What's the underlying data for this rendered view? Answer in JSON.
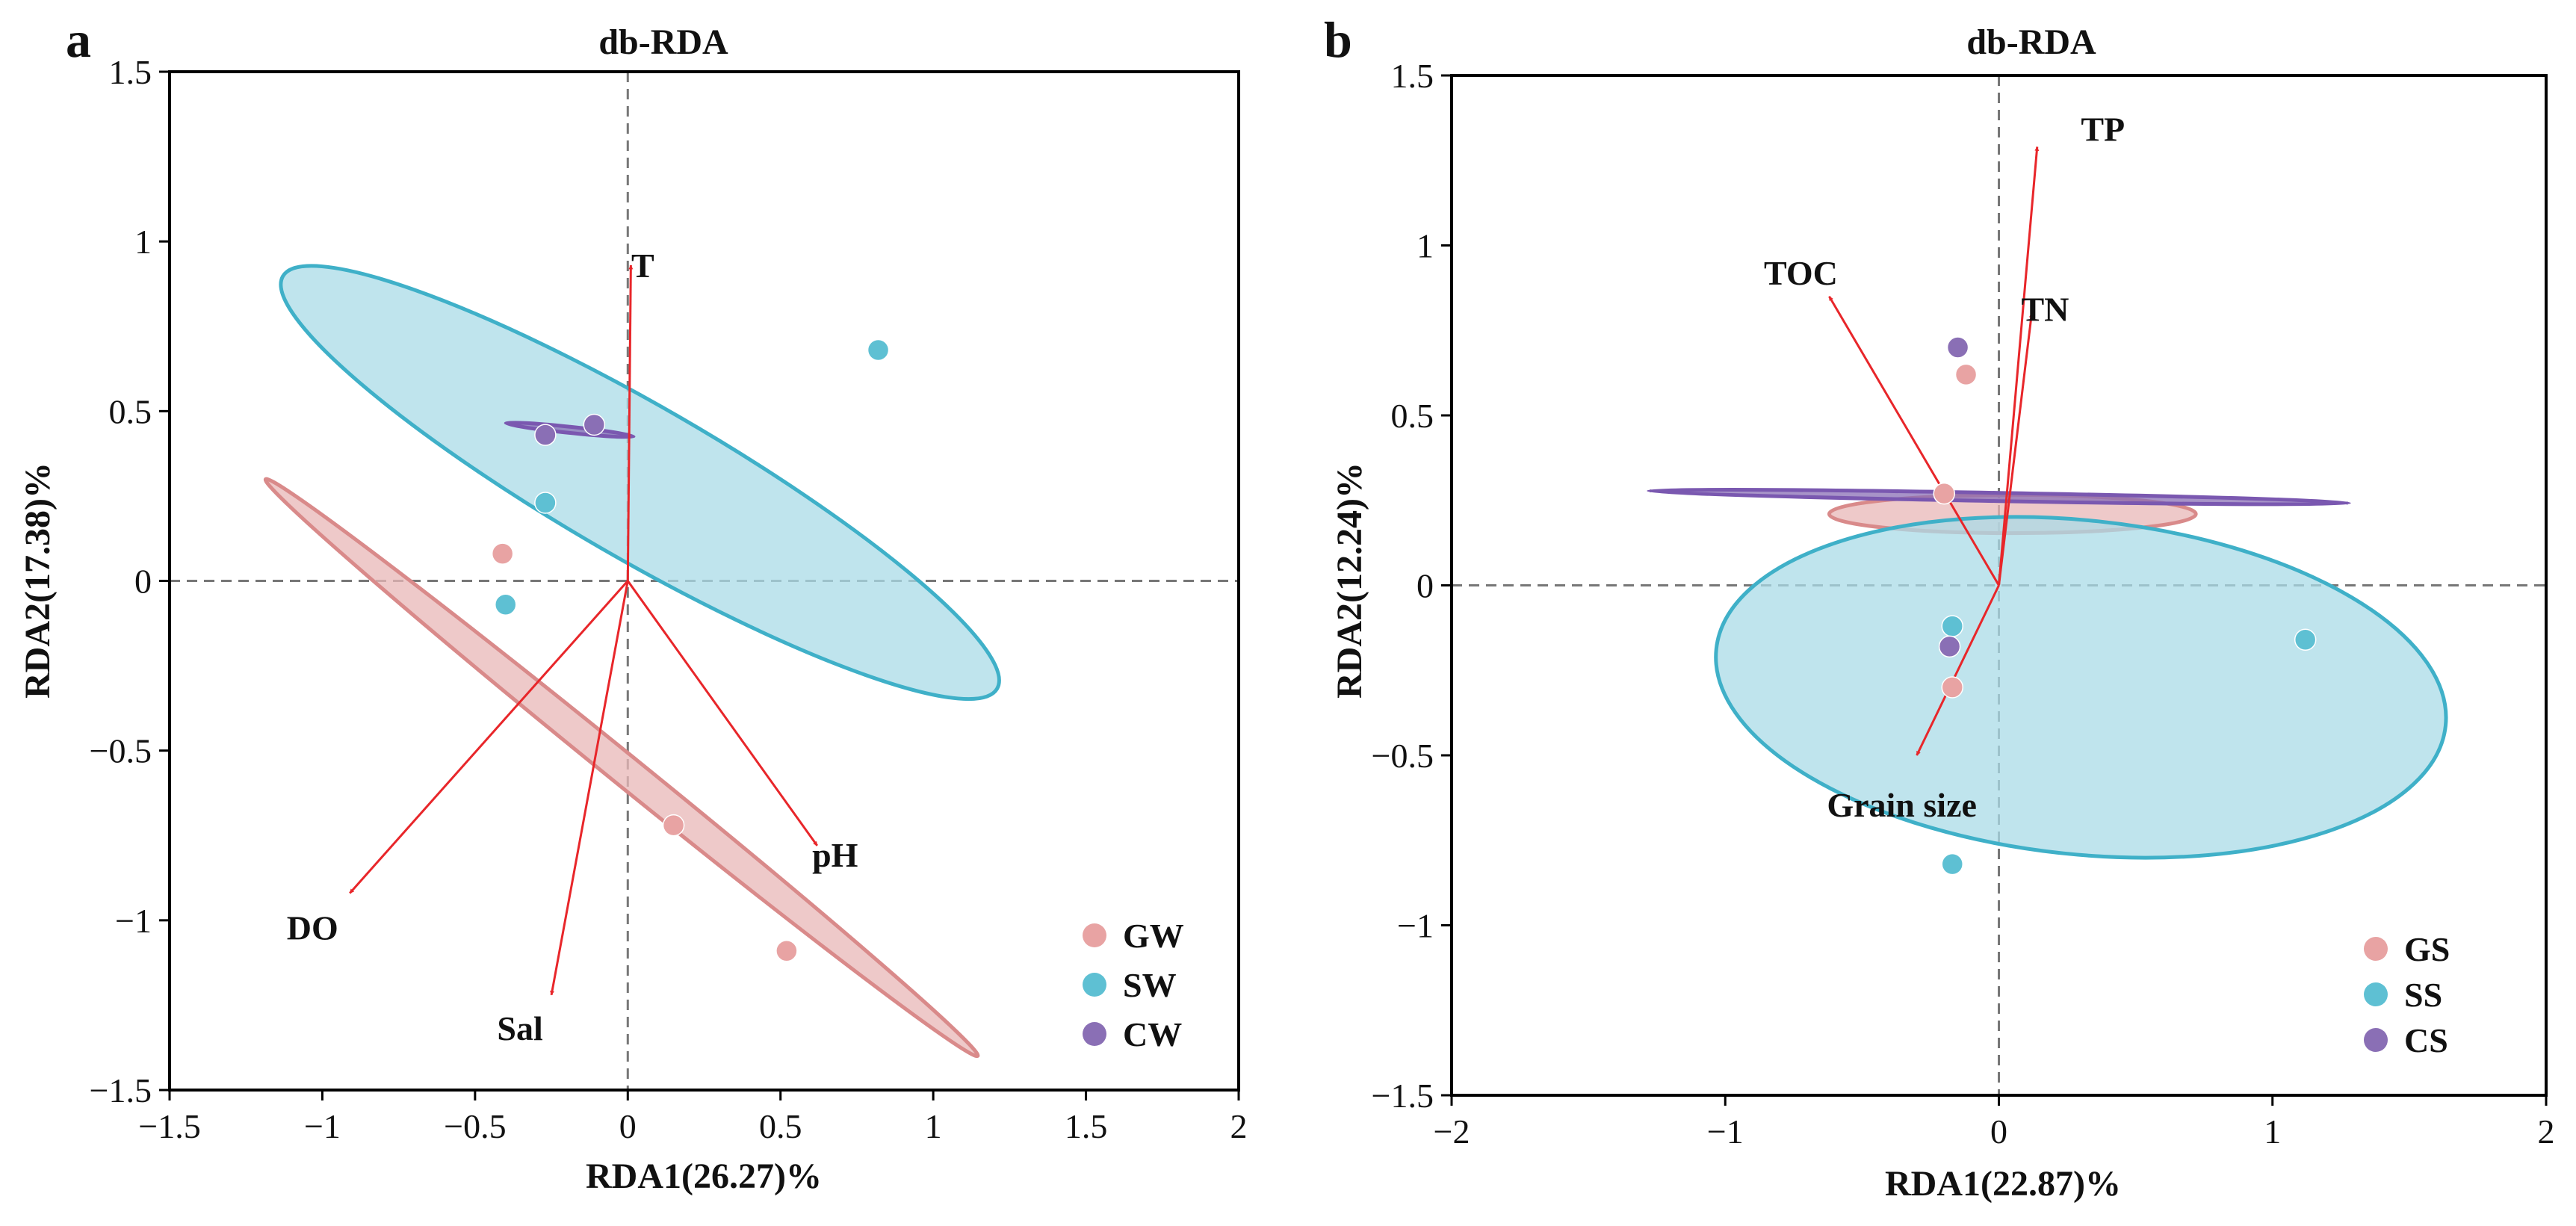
{
  "chart_data": [
    {
      "panel": "a",
      "type": "scatter",
      "title": "db-RDA",
      "xlabel": "RDA1(26.27)%",
      "ylabel": "RDA2(17.38)%",
      "xlim": [
        -1.5,
        2
      ],
      "ylim": [
        -1.5,
        1.5
      ],
      "x_ticks": [
        -1.5,
        -1,
        -0.5,
        0,
        0.5,
        1,
        1.5,
        2
      ],
      "y_ticks": [
        -1.5,
        -1,
        -0.5,
        0,
        0.5,
        1,
        1.5
      ],
      "x_tick_labels": [
        "−1.5",
        "−1",
        "−0.5",
        "0",
        "0.5",
        "1",
        "1.5",
        "2"
      ],
      "y_tick_labels": [
        "−1.5",
        "−1",
        "−0.5",
        "0",
        "0.5",
        "1",
        "1.5"
      ],
      "reference_lines": {
        "x": 0,
        "y": 0,
        "style": "dashed"
      },
      "legend_position": "bottom-right",
      "series": [
        {
          "name": "GW",
          "color": "#e8a3a3",
          "points": [
            [
              -0.41,
              0.08
            ],
            [
              0.15,
              -0.72
            ],
            [
              0.52,
              -1.09
            ]
          ],
          "ellipse": {
            "cx": -0.02,
            "cy": -0.55,
            "rx": 1.5,
            "ry": 0.05,
            "angle_deg": -39,
            "fill": "#e8b7b7",
            "stroke": "#d98a8a"
          }
        },
        {
          "name": "SW",
          "color": "#5ec0d3",
          "points": [
            [
              -0.4,
              -0.07
            ],
            [
              -0.27,
              0.23
            ],
            [
              0.82,
              0.68
            ]
          ],
          "ellipse": {
            "cx": 0.04,
            "cy": 0.29,
            "rx": 1.35,
            "ry": 0.25,
            "angle_deg": -30,
            "fill": "#a9dbe7",
            "stroke": "#3fb0c8"
          }
        },
        {
          "name": "CW",
          "color": "#8a6fb5",
          "points": [
            [
              -0.27,
              0.43
            ],
            [
              -0.11,
              0.46
            ]
          ],
          "ellipse": {
            "cx": -0.19,
            "cy": 0.445,
            "rx": 0.21,
            "ry": 0.01,
            "angle_deg": -6,
            "fill": "#8a6fb5",
            "stroke": "#7a58b0"
          }
        }
      ],
      "vectors": [
        {
          "name": "T",
          "x": 0.01,
          "y": 0.93
        },
        {
          "name": "pH",
          "x": 0.62,
          "y": -0.78
        },
        {
          "name": "DO",
          "x": -0.91,
          "y": -0.92
        },
        {
          "name": "Sal",
          "x": -0.25,
          "y": -1.22
        }
      ]
    },
    {
      "panel": "b",
      "type": "scatter",
      "title": "db-RDA",
      "xlabel": "RDA1(22.87)%",
      "ylabel": "RDA2(12.24)%",
      "xlim": [
        -2,
        2
      ],
      "ylim": [
        -1.5,
        1.5
      ],
      "x_ticks": [
        -2,
        -1,
        0,
        1,
        2
      ],
      "y_ticks": [
        -1.5,
        -1,
        -0.5,
        0,
        0.5,
        1,
        1.5
      ],
      "x_tick_labels": [
        "−2",
        "−1",
        "0",
        "1",
        "2"
      ],
      "y_tick_labels": [
        "−1.5",
        "−1",
        "−0.5",
        "0",
        "0.5",
        "1",
        "1.5"
      ],
      "reference_lines": {
        "x": 0,
        "y": 0,
        "style": "dashed"
      },
      "legend_position": "bottom-right",
      "series": [
        {
          "name": "GS",
          "color": "#e8a3a3",
          "points": [
            [
              -0.12,
              0.62
            ],
            [
              -0.17,
              -0.3
            ],
            [
              -0.2,
              0.27
            ]
          ],
          "ellipse": {
            "cx": 0.05,
            "cy": 0.21,
            "rx": 0.67,
            "ry": 0.07,
            "angle_deg": 0,
            "fill": "#e8b7b7",
            "stroke": "#d98a8a"
          }
        },
        {
          "name": "SS",
          "color": "#5ec0d3",
          "points": [
            [
              -0.17,
              -0.12
            ],
            [
              1.12,
              -0.16
            ],
            [
              -0.17,
              -0.82
            ]
          ],
          "ellipse": {
            "cx": 0.3,
            "cy": -0.3,
            "rx": 1.34,
            "ry": 0.61,
            "angle_deg": -6,
            "fill": "#a9dbe7",
            "stroke": "#3fb0c8"
          }
        },
        {
          "name": "CS",
          "color": "#8a6fb5",
          "points": [
            [
              -0.15,
              0.7
            ],
            [
              -0.18,
              -0.18
            ]
          ],
          "ellipse": {
            "cx": 0.0,
            "cy": 0.26,
            "rx": 1.28,
            "ry": 0.015,
            "angle_deg": -1,
            "fill": "#8a6fb5",
            "stroke": "#7a58b0"
          }
        }
      ],
      "vectors": [
        {
          "name": "TP",
          "x": 0.14,
          "y": 1.29
        },
        {
          "name": "TOC",
          "x": -0.62,
          "y": 0.85
        },
        {
          "name": "TN",
          "x": 0.12,
          "y": 0.8
        },
        {
          "name": "Grain size",
          "x": -0.3,
          "y": -0.5
        }
      ]
    }
  ]
}
